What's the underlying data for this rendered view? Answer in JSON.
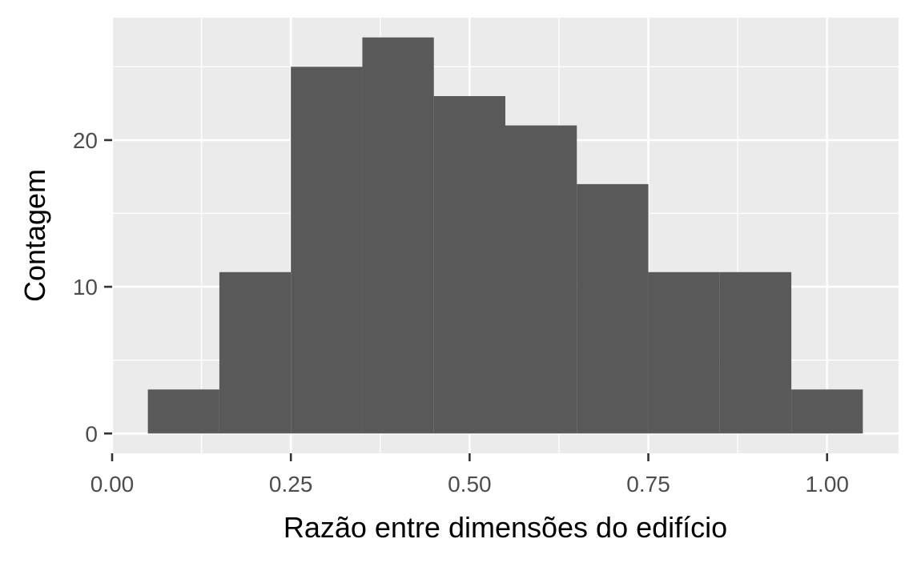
{
  "chart_data": {
    "type": "histogram",
    "xlabel": "Razão entre dimensões do edifício",
    "ylabel": "Contagem",
    "bin_width": 0.1,
    "bins": [
      {
        "x_start": 0.05,
        "x_end": 0.15,
        "count": 3
      },
      {
        "x_start": 0.15,
        "x_end": 0.25,
        "count": 11
      },
      {
        "x_start": 0.25,
        "x_end": 0.35,
        "count": 25
      },
      {
        "x_start": 0.35,
        "x_end": 0.45,
        "count": 27
      },
      {
        "x_start": 0.45,
        "x_end": 0.55,
        "count": 23
      },
      {
        "x_start": 0.55,
        "x_end": 0.65,
        "count": 21
      },
      {
        "x_start": 0.65,
        "x_end": 0.75,
        "count": 17
      },
      {
        "x_start": 0.75,
        "x_end": 0.85,
        "count": 11
      },
      {
        "x_start": 0.85,
        "x_end": 0.95,
        "count": 11
      },
      {
        "x_start": 0.95,
        "x_end": 1.05,
        "count": 3
      }
    ],
    "xlim": [
      0.0,
      1.1
    ],
    "ylim": [
      -1.35,
      28.35
    ],
    "x_ticks": [
      {
        "value": 0.0,
        "label": "0.00"
      },
      {
        "value": 0.25,
        "label": "0.25"
      },
      {
        "value": 0.5,
        "label": "0.50"
      },
      {
        "value": 0.75,
        "label": "0.75"
      },
      {
        "value": 1.0,
        "label": "1.00"
      }
    ],
    "y_ticks": [
      {
        "value": 0,
        "label": "0"
      },
      {
        "value": 10,
        "label": "10"
      },
      {
        "value": 20,
        "label": "20"
      }
    ],
    "x_minor_ticks": [
      0.125,
      0.375,
      0.625,
      0.875
    ],
    "y_minor_ticks": [
      5,
      15,
      25
    ],
    "grid": true,
    "legend": "none",
    "colors": {
      "bar_fill": "#595959",
      "panel_background": "#ebebeb",
      "grid_line": "#ffffff",
      "tick_mark": "#333333",
      "tick_label": "#4d4d4d",
      "axis_title": "#000000"
    }
  }
}
